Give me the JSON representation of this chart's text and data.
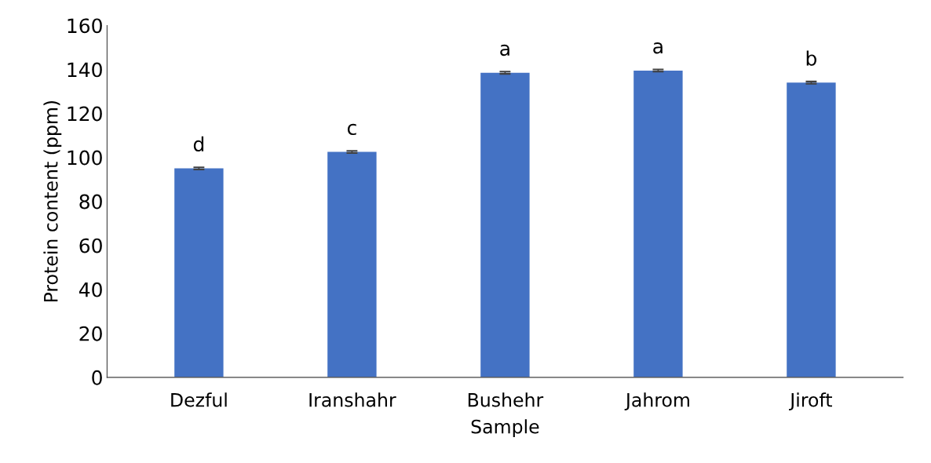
{
  "chart_data": {
    "type": "bar",
    "xlabel": "Sample",
    "ylabel": "Protein content (ppm)",
    "categories": [
      "Dezful",
      "Iranshahr",
      "Bushehr",
      "Jahrom",
      "Jiroft"
    ],
    "values": [
      95,
      102.5,
      138.5,
      139.5,
      134
    ],
    "errors": [
      0.5,
      0.5,
      0.5,
      0.5,
      0.5
    ],
    "color": "#4472c4",
    "ylim": [
      0,
      160
    ],
    "yticks": [
      0,
      20,
      40,
      60,
      80,
      100,
      120,
      140,
      160
    ],
    "annotations": [
      {
        "text": "d",
        "x": "Dezful",
        "y": 95
      },
      {
        "text": "c",
        "x": "Iranshahr",
        "y": 102.5
      },
      {
        "text": "a",
        "x": "Bushehr",
        "y": 138.5
      },
      {
        "text": "a",
        "x": "Jahrom",
        "y": 139.5
      },
      {
        "text": "b",
        "x": "Jiroft",
        "y": 134
      }
    ],
    "grid": false,
    "legend": false
  }
}
